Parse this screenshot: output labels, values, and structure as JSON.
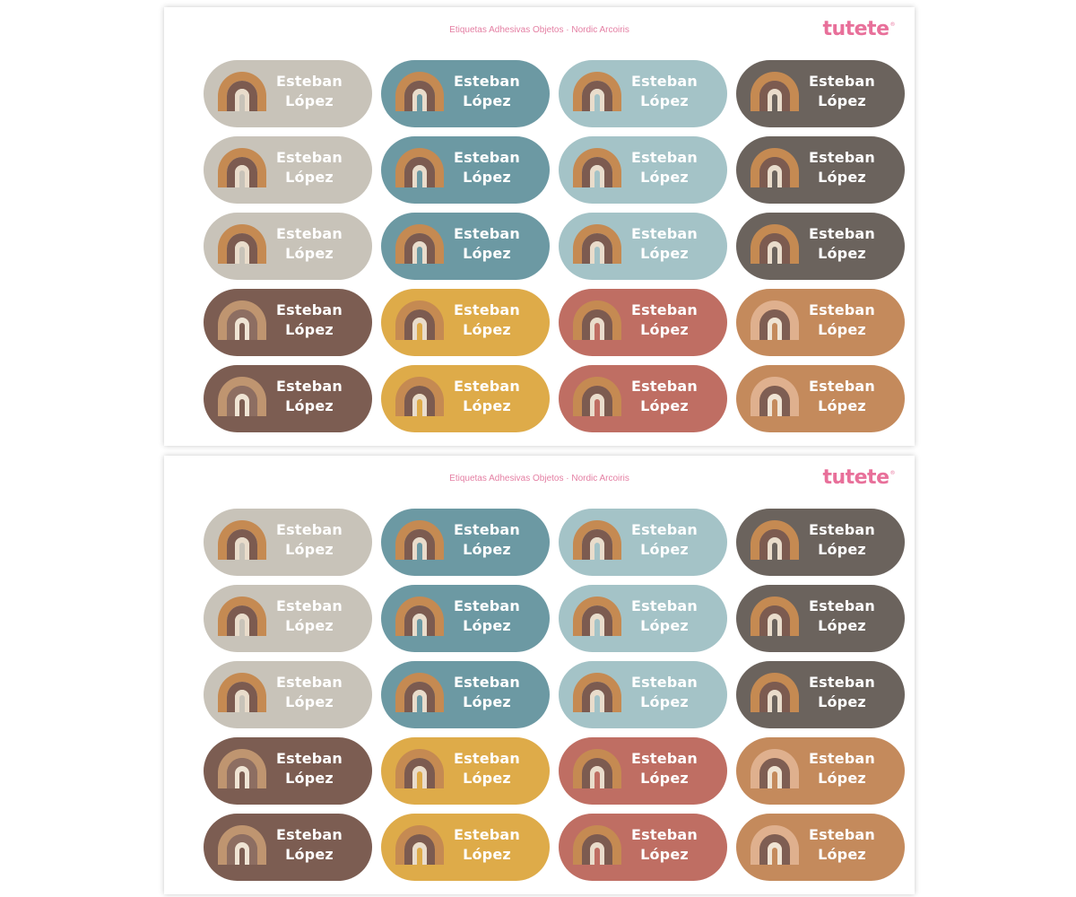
{
  "sheets": [
    {
      "title": "Etiquetas Adhesivas Objetos · Nordic Arcoiris",
      "brand": "tutete",
      "brand_mark": "®"
    },
    {
      "title": "Etiquetas Adhesivas Objetos · Nordic Arcoiris",
      "brand": "tutete",
      "brand_mark": "®"
    }
  ],
  "label_text": {
    "first_name": "Esteban",
    "last_name": "López"
  },
  "colors": {
    "title_pink": "#e47fa3",
    "logo_pink": "#e8709a",
    "label_text": "#ffffff",
    "label_backgrounds": {
      "beige": "#c8c3b9",
      "teal": "#6c99a3",
      "light_blue": "#a4c3c7",
      "charcoal": "#6b635d",
      "brown": "#7c5d52",
      "mustard": "#deab49",
      "terracotta": "#bf6e63",
      "caramel": "#c48a5c"
    },
    "rainbow_palettes": {
      "standard": [
        "#c58a52",
        "#7c5b50",
        "#e9dccb"
      ],
      "on_brown": [
        "#bf9570",
        "#8d6e62",
        "#efe4d4"
      ],
      "on_caramel": [
        "#dfb08e",
        "#7e5e53",
        "#efe4d4"
      ]
    }
  },
  "label_grid": [
    [
      "beige",
      "teal",
      "light_blue",
      "charcoal"
    ],
    [
      "beige",
      "teal",
      "light_blue",
      "charcoal"
    ],
    [
      "beige",
      "teal",
      "light_blue",
      "charcoal"
    ],
    [
      "brown",
      "mustard",
      "terracotta",
      "caramel"
    ],
    [
      "brown",
      "mustard",
      "terracotta",
      "caramel"
    ]
  ],
  "icons": {
    "label_icon": "rainbow-icon"
  }
}
